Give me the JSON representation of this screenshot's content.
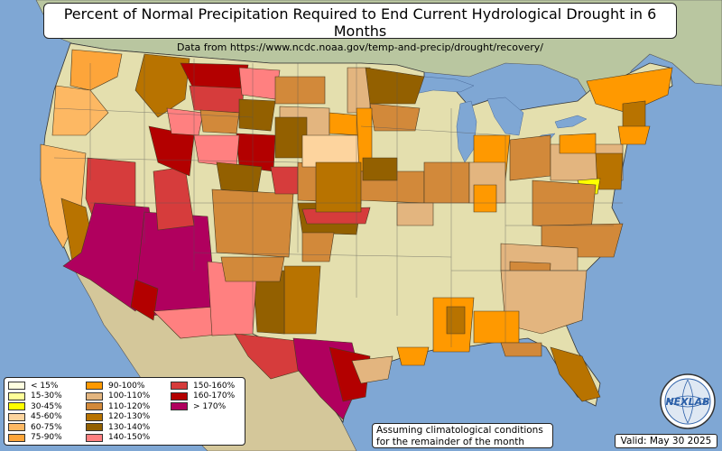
{
  "title": "Percent of Normal Precipitation Required to End Current Hydrological Drought in 6 Months",
  "subtitle": "Data from https://www.ncdc.noaa.gov/temp-and-precip/drought/recovery/",
  "legend": [
    {
      "label": "< 15%",
      "color": "#ffffe0"
    },
    {
      "label": "15-30%",
      "color": "#ffff99"
    },
    {
      "label": "30-45%",
      "color": "#ffff00"
    },
    {
      "label": "45-60%",
      "color": "#fdd49e"
    },
    {
      "label": "60-75%",
      "color": "#fdb863"
    },
    {
      "label": "75-90%",
      "color": "#fda53a"
    },
    {
      "label": "90-100%",
      "color": "#ff9900"
    },
    {
      "label": "100-110%",
      "color": "#e3b57f"
    },
    {
      "label": "110-120%",
      "color": "#d2893a"
    },
    {
      "label": "120-130%",
      "color": "#b87300"
    },
    {
      "label": "130-140%",
      "color": "#936000"
    },
    {
      "label": "140-150%",
      "color": "#ff8080"
    },
    {
      "label": "150-160%",
      "color": "#d63c3c"
    },
    {
      "label": "160-170%",
      "color": "#b30000"
    },
    {
      "label": "> 170%",
      "color": "#b0005e"
    }
  ],
  "note_line1": "Assuming climatological conditions",
  "note_line2": "for the remainder of the month",
  "valid": "Valid: May 30 2025",
  "logo_text": "NEXLAB",
  "colors": {
    "ocean": "#7fa7d4",
    "land": "#e4dfae",
    "canada": "#b9c6a0",
    "mexico": "#d4c79a"
  }
}
